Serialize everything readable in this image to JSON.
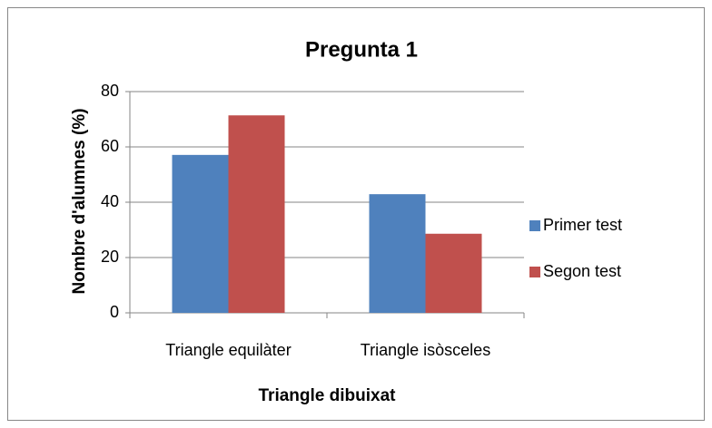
{
  "chart_data": {
    "type": "bar",
    "title": "Pregunta 1",
    "x_label": "Triangle dibuixat",
    "y_label": "Nombre d'alumnes (%)",
    "categories": [
      "Triangle equilàter",
      "Triangle isòsceles"
    ],
    "series": [
      {
        "name": "Primer test",
        "color": "#4f81bd",
        "values": [
          57.1,
          42.9
        ]
      },
      {
        "name": "Segon test",
        "color": "#c0504d",
        "values": [
          71.4,
          28.6
        ]
      }
    ],
    "ylim": [
      0,
      80
    ],
    "yticks": [
      0,
      20,
      40,
      60,
      80
    ],
    "grid": true,
    "legend": "right"
  }
}
